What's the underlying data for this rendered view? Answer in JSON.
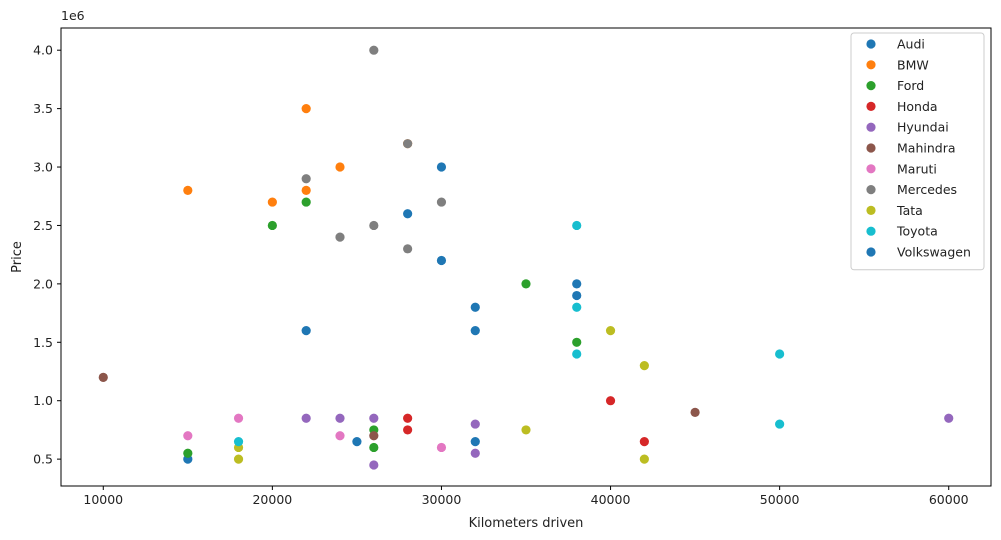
{
  "chart_data": {
    "type": "scatter",
    "title": "",
    "xlabel": "Kilometers driven",
    "ylabel": "Price",
    "y_offset_text": "1e6",
    "xlim": [
      7500,
      62500
    ],
    "ylim": [
      0.27,
      4.19
    ],
    "x_ticks": [
      10000,
      20000,
      30000,
      40000,
      50000,
      60000
    ],
    "x_tick_labels": [
      "10000",
      "20000",
      "30000",
      "40000",
      "50000",
      "60000"
    ],
    "y_ticks": [
      0.5,
      1.0,
      1.5,
      2.0,
      2.5,
      3.0,
      3.5,
      4.0
    ],
    "y_tick_labels": [
      "0.5",
      "1.0",
      "1.5",
      "2.0",
      "2.5",
      "3.0",
      "3.5",
      "4.0"
    ],
    "y_unit_multiplier": 1000000,
    "grid": false,
    "legend_position": "top-right",
    "series": [
      {
        "name": "Audi",
        "color": "#1f77b4",
        "points": [
          [
            28000,
            2.6
          ],
          [
            30000,
            2.2
          ],
          [
            32000,
            1.8
          ],
          [
            38000,
            2.0
          ],
          [
            38000,
            1.9
          ],
          [
            32000,
            0.65
          ],
          [
            15000,
            0.5
          ]
        ]
      },
      {
        "name": "BMW",
        "color": "#ff7f0e",
        "points": [
          [
            15000,
            2.8
          ],
          [
            20000,
            2.7
          ],
          [
            22000,
            2.8
          ],
          [
            22000,
            3.5
          ],
          [
            24000,
            3.0
          ],
          [
            28000,
            3.2
          ]
        ]
      },
      {
        "name": "Ford",
        "color": "#2ca02c",
        "points": [
          [
            20000,
            2.5
          ],
          [
            22000,
            2.7
          ],
          [
            35000,
            2.0
          ],
          [
            38000,
            1.5
          ],
          [
            15000,
            0.55
          ],
          [
            26000,
            0.75
          ],
          [
            26000,
            0.6
          ]
        ]
      },
      {
        "name": "Honda",
        "color": "#d62728",
        "points": [
          [
            28000,
            0.85
          ],
          [
            28000,
            0.75
          ],
          [
            40000,
            1.0
          ],
          [
            42000,
            0.65
          ]
        ]
      },
      {
        "name": "Hyundai",
        "color": "#9467bd",
        "points": [
          [
            22000,
            0.85
          ],
          [
            24000,
            0.85
          ],
          [
            26000,
            0.85
          ],
          [
            26000,
            0.45
          ],
          [
            32000,
            0.8
          ],
          [
            32000,
            0.55
          ],
          [
            60000,
            0.85
          ]
        ]
      },
      {
        "name": "Mahindra",
        "color": "#8c564b",
        "points": [
          [
            10000,
            1.2
          ],
          [
            26000,
            0.7
          ],
          [
            45000,
            0.9
          ]
        ]
      },
      {
        "name": "Maruti",
        "color": "#e377c2",
        "points": [
          [
            15000,
            0.7
          ],
          [
            18000,
            0.85
          ],
          [
            24000,
            0.7
          ],
          [
            30000,
            0.6
          ]
        ]
      },
      {
        "name": "Mercedes",
        "color": "#7f7f7f",
        "points": [
          [
            26000,
            4.0
          ],
          [
            22000,
            2.9
          ],
          [
            28000,
            3.2
          ],
          [
            30000,
            2.7
          ],
          [
            24000,
            2.4
          ],
          [
            26000,
            2.5
          ],
          [
            28000,
            2.3
          ]
        ]
      },
      {
        "name": "Tata",
        "color": "#bcbd22",
        "points": [
          [
            18000,
            0.6
          ],
          [
            18000,
            0.5
          ],
          [
            35000,
            0.75
          ],
          [
            40000,
            1.6
          ],
          [
            42000,
            1.3
          ],
          [
            42000,
            0.5
          ]
        ]
      },
      {
        "name": "Toyota",
        "color": "#17becf",
        "points": [
          [
            18000,
            0.65
          ],
          [
            38000,
            2.5
          ],
          [
            38000,
            1.8
          ],
          [
            38000,
            1.4
          ],
          [
            50000,
            1.4
          ],
          [
            50000,
            0.8
          ]
        ]
      },
      {
        "name": "Volkswagen",
        "color": "#1f77b4",
        "points": [
          [
            22000,
            1.6
          ],
          [
            25000,
            0.65
          ],
          [
            30000,
            3.0
          ],
          [
            32000,
            1.6
          ]
        ]
      }
    ]
  }
}
